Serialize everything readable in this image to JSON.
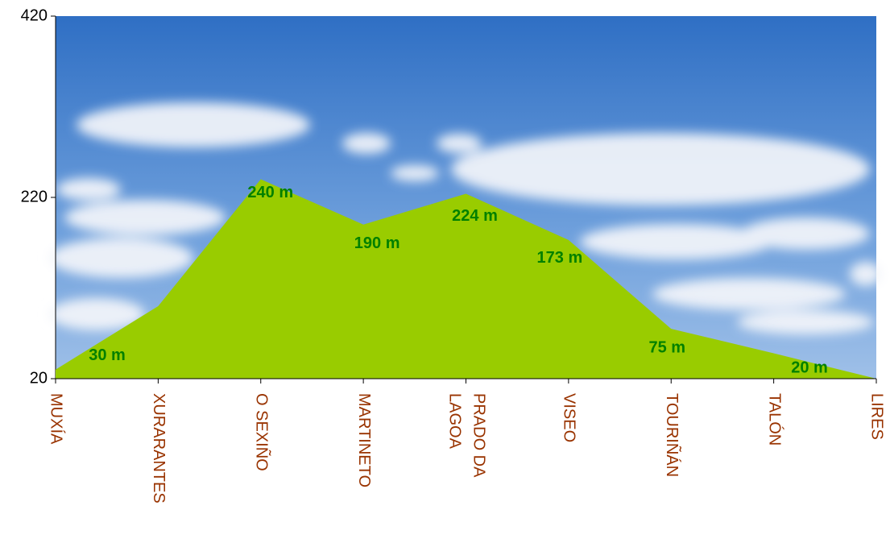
{
  "chart_data": {
    "type": "area",
    "categories": [
      "MUXÍA",
      "XURARANTES",
      "O SEXIÑO",
      "MARTINETO",
      "PRADO DA LAGOA",
      "VISEO",
      "TOURIÑÁN",
      "TALÓN",
      "LIRES"
    ],
    "values": [
      30,
      100,
      240,
      190,
      224,
      173,
      75,
      48,
      20
    ],
    "value_labels": [
      "30 m",
      null,
      "240 m",
      "190 m",
      "224 m",
      "173 m",
      "75 m",
      null,
      "20 m"
    ],
    "color": "#99cc00",
    "label_color": "#008000",
    "category_color": "#993300",
    "ylim": [
      20,
      420
    ],
    "yticks": [
      20,
      220,
      420
    ]
  }
}
